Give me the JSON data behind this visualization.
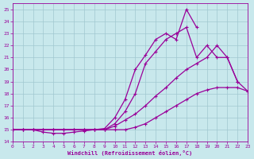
{
  "background_color": "#c8e8ec",
  "grid_color": "#a0c8d0",
  "line_color": "#990099",
  "xlabel": "Windchill (Refroidissement éolien,°C)",
  "xlim": [
    0,
    23
  ],
  "ylim": [
    14,
    25.5
  ],
  "yticks": [
    14,
    15,
    16,
    17,
    18,
    19,
    20,
    21,
    22,
    23,
    24,
    25
  ],
  "xticks": [
    0,
    1,
    2,
    3,
    4,
    5,
    6,
    7,
    8,
    9,
    10,
    11,
    12,
    13,
    14,
    15,
    16,
    17,
    18,
    19,
    20,
    21,
    22,
    23
  ],
  "series": [
    {
      "x": [
        0,
        1,
        2,
        3,
        4,
        5,
        6,
        7,
        8,
        9,
        10,
        11,
        12,
        13,
        14,
        15,
        16,
        17,
        18
      ],
      "y": [
        15,
        15,
        15,
        14.8,
        14.7,
        14.7,
        14.8,
        14.9,
        15.0,
        15.1,
        16.0,
        17.5,
        20.0,
        21.2,
        22.5,
        23.0,
        22.5,
        25.0,
        23.5
      ]
    },
    {
      "x": [
        0,
        1,
        2,
        3,
        4,
        5,
        6,
        7,
        8,
        9,
        10,
        11,
        12,
        13,
        14,
        15,
        16,
        17,
        18,
        19,
        20,
        21,
        22
      ],
      "y": [
        15,
        15,
        15,
        15,
        15,
        15,
        15,
        15,
        15,
        15,
        15.5,
        16.5,
        18.0,
        20.5,
        21.5,
        22.5,
        23.0,
        23.5,
        21.0,
        22.0,
        21.0,
        21.0,
        19.0
      ]
    },
    {
      "x": [
        0,
        1,
        2,
        3,
        4,
        5,
        6,
        7,
        8,
        9,
        10,
        11,
        12,
        13,
        14,
        15,
        16,
        17,
        18,
        19,
        20,
        21,
        22,
        23
      ],
      "y": [
        15,
        15,
        15,
        15,
        15,
        15,
        15,
        15,
        15,
        15,
        15.3,
        15.8,
        16.3,
        17.0,
        17.8,
        18.5,
        19.3,
        20.0,
        20.5,
        21.0,
        22.0,
        21.0,
        19.0,
        18.2
      ]
    },
    {
      "x": [
        0,
        1,
        2,
        3,
        4,
        5,
        6,
        7,
        8,
        9,
        10,
        11,
        12,
        13,
        14,
        15,
        16,
        17,
        18,
        19,
        20,
        21,
        22,
        23
      ],
      "y": [
        15,
        15,
        15,
        15,
        15,
        15,
        15,
        15,
        15,
        15,
        15,
        15,
        15.2,
        15.5,
        16.0,
        16.5,
        17.0,
        17.5,
        18.0,
        18.3,
        18.5,
        18.5,
        18.5,
        18.2
      ]
    }
  ]
}
